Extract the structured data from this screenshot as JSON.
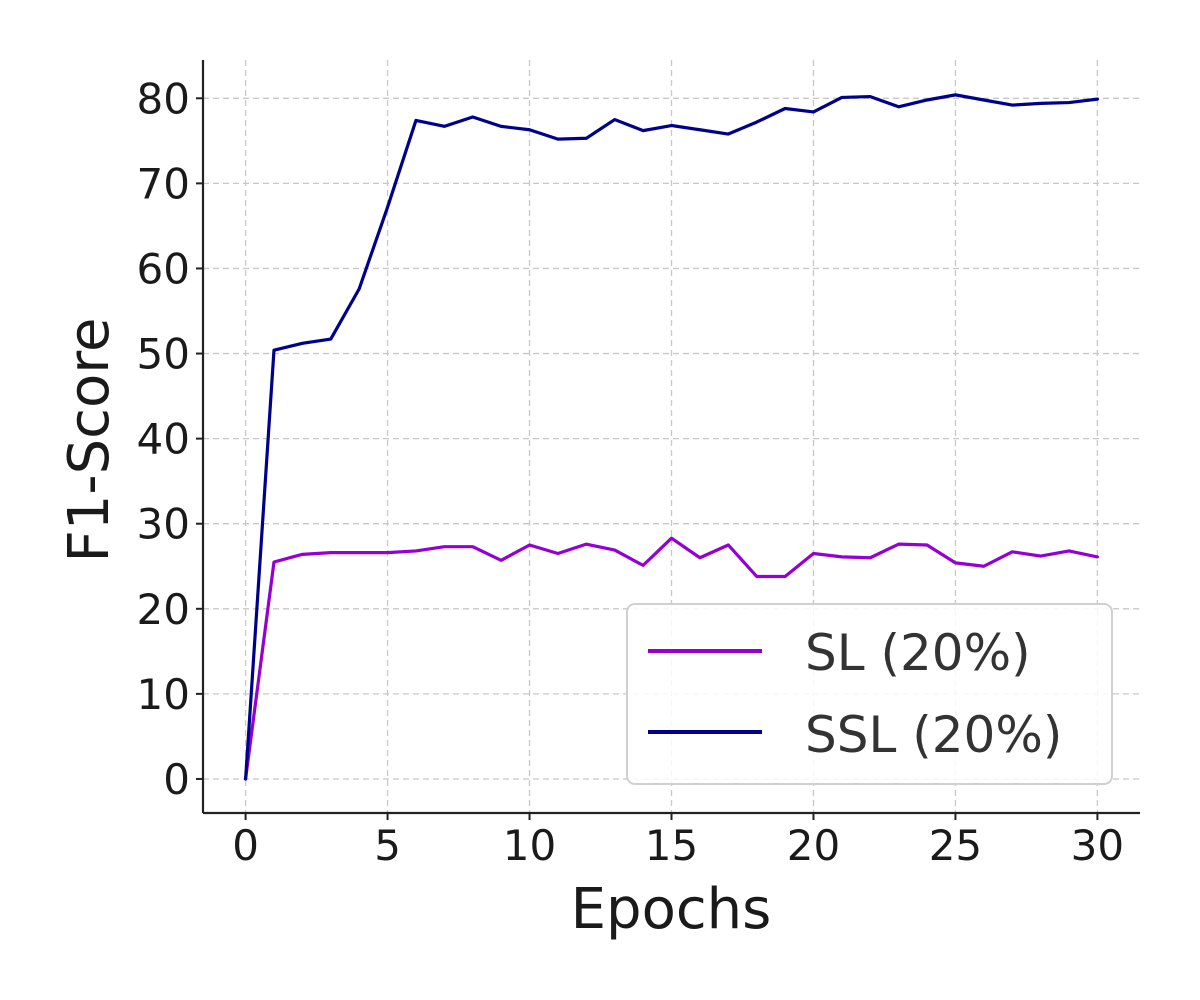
{
  "chart_data": {
    "type": "line",
    "title": "",
    "xlabel": "Epochs",
    "ylabel": "F1-Score",
    "xlim": [
      -1.5,
      31.5
    ],
    "ylim": [
      -4,
      84.5
    ],
    "xticks": [
      0,
      5,
      10,
      15,
      20,
      25,
      30
    ],
    "yticks": [
      0,
      10,
      20,
      30,
      40,
      50,
      60,
      70,
      80
    ],
    "grid": true,
    "legend_position": "bottom-right",
    "x": [
      0,
      1,
      2,
      3,
      4,
      5,
      6,
      7,
      8,
      9,
      10,
      11,
      12,
      13,
      14,
      15,
      16,
      17,
      18,
      19,
      20,
      21,
      22,
      23,
      24,
      25,
      26,
      27,
      28,
      29,
      30
    ],
    "series": [
      {
        "name": "SL (20%)",
        "color": "#9400D3",
        "values": [
          0,
          25.5,
          26.4,
          26.6,
          26.6,
          26.6,
          26.8,
          27.3,
          27.3,
          25.7,
          27.5,
          26.5,
          27.6,
          26.9,
          25.1,
          28.3,
          26.0,
          27.5,
          23.8,
          23.8,
          26.5,
          26.1,
          26.0,
          27.6,
          27.5,
          25.4,
          25.0,
          26.7,
          26.2,
          26.8,
          26.1
        ]
      },
      {
        "name": "SSL (20%)",
        "color": "#00008B",
        "values": [
          0,
          50.4,
          51.2,
          51.7,
          57.6,
          67.2,
          77.4,
          76.7,
          77.8,
          76.7,
          76.3,
          75.2,
          75.3,
          77.5,
          76.2,
          76.8,
          76.3,
          75.8,
          77.2,
          78.8,
          78.4,
          80.1,
          80.2,
          79.0,
          79.8,
          80.4,
          79.8,
          79.2,
          79.4,
          79.5,
          79.9
        ]
      }
    ]
  }
}
